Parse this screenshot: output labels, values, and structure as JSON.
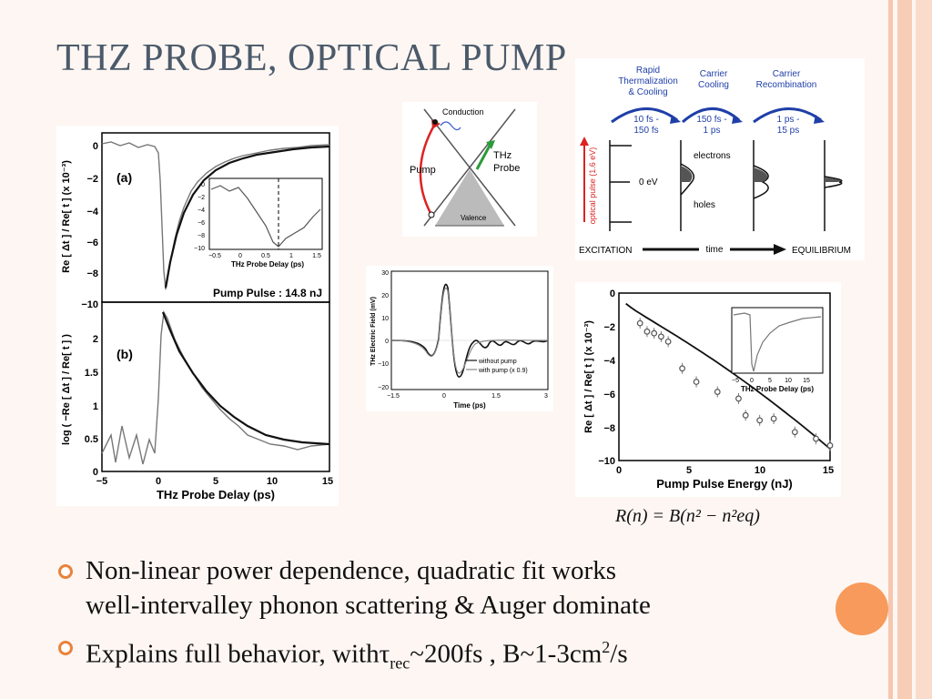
{
  "slide": {
    "title": "THZ PROBE, OPTICAL PUMP",
    "bullets": [
      {
        "line1": "Non-linear power dependence, quadratic fit works",
        "line2": "well-intervalley phonon scattering & Auger dominate"
      },
      {
        "text_before": "Explains full behavior, with",
        "tau": "τ",
        "tau_sub": "rec",
        "text_mid": "~200fs , B~1-3cm",
        "sup": "2",
        "text_end": "/s"
      }
    ],
    "equation": "R(n) = B(n² − n²eq)",
    "accent_color": "#e8833a"
  },
  "fig_left": {
    "panel_a_label": "(a)",
    "panel_b_label": "(b)",
    "ylabel_a": "Re [ Δt ] / Re[ t ] (x 10⁻³)",
    "ylabel_b": "log ( −Re [ Δt ] / Re[ t ] )",
    "xlabel": "THz Probe Delay (ps)",
    "pump_label": "Pump Pulse : 14.8 nJ",
    "a_yticks": [
      "0",
      "−2",
      "−4",
      "−6",
      "−8",
      "−10"
    ],
    "b_yticks": [
      "2",
      "1.5",
      "1",
      "0.5",
      "0"
    ],
    "xticks": [
      "−5",
      "0",
      "5",
      "10",
      "15"
    ],
    "inset_yticks": [
      "0",
      "−2",
      "−4",
      "−6",
      "−8",
      "−10"
    ],
    "inset_xticks": [
      "−0.5",
      "0",
      "0.5",
      "1",
      "1.5"
    ],
    "inset_xlabel": "THz Probe Delay (ps)"
  },
  "band_diagram": {
    "conduction": "Conduction",
    "valence": "Valence",
    "pump": "Pump",
    "probe_line1": "THz",
    "probe_line2": "Probe"
  },
  "thz_field": {
    "ylabel": "THz Electric Field (mV)",
    "xlabel": "Time (ps)",
    "yticks": [
      "30",
      "20",
      "10",
      "0",
      "−10",
      "−20"
    ],
    "xticks": [
      "−1.5",
      "0",
      "1.5",
      "3"
    ],
    "legend1": "without pump",
    "legend2": "with pump (x 0.9)"
  },
  "relaxation": {
    "stage1": [
      "Rapid",
      "Thermalization",
      "& Cooling"
    ],
    "stage2": [
      "Carrier",
      "Cooling"
    ],
    "stage3": [
      "Carrier",
      "Recombination"
    ],
    "time1": [
      "10 fs -",
      "150 fs"
    ],
    "time2": [
      "150 fs -",
      "1 ps"
    ],
    "time3": [
      "1 ps -",
      "15 ps"
    ],
    "ylabel": "optical pulse (1.6 eV)",
    "zero_ev": "0 eV",
    "electrons": "electrons",
    "holes": "holes",
    "excitation": "EXCITATION",
    "time": "time",
    "equilibrium": "EQUILIBRIUM"
  },
  "energy_plot": {
    "ylabel": "Re [ Δt ] / Re[ t ] (x 10⁻³)",
    "xlabel": "Pump Pulse Energy (nJ)",
    "yticks": [
      "0",
      "−2",
      "−4",
      "−6",
      "−8",
      "−10"
    ],
    "xticks": [
      "0",
      "5",
      "10",
      "15"
    ],
    "inset_xticks": [
      "−5",
      "0",
      "5",
      "10",
      "15"
    ],
    "inset_xlabel": "THz Probe Delay (ps)"
  },
  "chart_data": [
    {
      "type": "scatter",
      "title": "",
      "xlabel": "Pump Pulse Energy (nJ)",
      "ylabel": "Re [ Δt ] / Re[ t ] (x 10⁻³)",
      "xlim": [
        0,
        15
      ],
      "ylim": [
        -10,
        0
      ],
      "x": [
        1.5,
        2.0,
        2.5,
        3.0,
        3.5,
        4.5,
        5.5,
        7.0,
        8.5,
        9.0,
        10.0,
        11.0,
        12.5,
        14.0,
        15.0
      ],
      "y": [
        -1.8,
        -2.3,
        -2.4,
        -2.6,
        -2.9,
        -4.5,
        -5.3,
        -5.9,
        -6.3,
        -7.3,
        -7.6,
        -7.5,
        -8.3,
        -8.7,
        -9.1
      ]
    }
  ]
}
